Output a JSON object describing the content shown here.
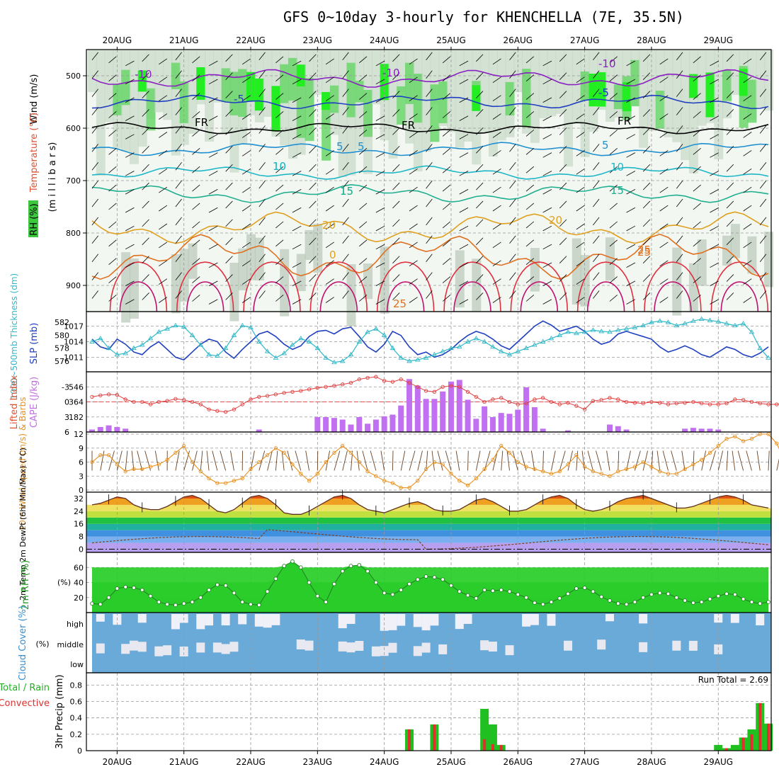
{
  "title": "GFS 0~10day 3-hourly for KHENCHELLA (7E, 35.5N)",
  "chart_data": {
    "type": "meteogram",
    "dates": [
      "20AUG",
      "21AUG",
      "22AUG",
      "23AUG",
      "24AUG",
      "25AUG",
      "26AUG",
      "27AUG",
      "28AUG",
      "29AUG"
    ],
    "panels": {
      "upper_air": {
        "ylabel_wind": "Wind (m/s)",
        "ylabel_temp": "Temperature (°C)",
        "ylabel_pres": "(m i l l i b a r s)",
        "ylabel_rh": "RH (%)",
        "yticks": [
          "500",
          "600",
          "700",
          "800",
          "900"
        ],
        "ylim": [
          450,
          950
        ],
        "isotherm_labels": [
          "-10",
          "-5",
          "FR",
          "5",
          "10",
          "15",
          "20",
          "25",
          "0",
          "25",
          "-10",
          "-5",
          "FR",
          "5",
          "10",
          "15",
          "20",
          "25",
          "-10",
          "FR",
          "-5",
          "5",
          "10",
          "15"
        ]
      },
      "sfc_pressure": {
        "ylabel_thick": "1000~500mb Thickness (dm)",
        "ylabel_slp": "SLP (mb)",
        "thick_ticks": [
          "582",
          "580",
          "578",
          "576"
        ],
        "slp_ticks": [
          "1017",
          "1014",
          "1011"
        ],
        "thick_ylim": [
          575,
          583
        ],
        "slp_ylim": [
          1009,
          1019
        ],
        "slp": [
          1014.5,
          1013,
          1012.5,
          1014.5,
          1013.5,
          1012,
          1011.5,
          1013,
          1014,
          1012.5,
          1011,
          1010.5,
          1012,
          1013.5,
          1014.5,
          1014,
          1012,
          1010.8,
          1012.5,
          1014,
          1015.5,
          1016,
          1015,
          1013.5,
          1012.5,
          1013.2,
          1015,
          1016,
          1016.2,
          1015.5,
          1016.5,
          1016.8,
          1015,
          1013,
          1012,
          1013.5,
          1016,
          1015.2,
          1013,
          1011.5,
          1012,
          1011,
          1011.5,
          1012.5,
          1014,
          1015.2,
          1016,
          1015.5,
          1014.5,
          1013.2,
          1012.5,
          1014,
          1015.5,
          1017,
          1018,
          1017.2,
          1016,
          1016.5,
          1017,
          1016,
          1014.5,
          1013.5,
          1014,
          1015.5,
          1016,
          1015.5,
          1015,
          1014.5,
          1013,
          1012,
          1012.5,
          1013.2,
          1012.5,
          1011.5,
          1011,
          1012,
          1013,
          1012.5,
          1011.5,
          1011,
          1011.8,
          1013
        ],
        "thickness": [
          579,
          579.5,
          578,
          577,
          577.2,
          578,
          578.5,
          579.5,
          580.5,
          581,
          581.5,
          581.3,
          580,
          578.5,
          577,
          576.8,
          578,
          580,
          581.5,
          581.2,
          579,
          577.5,
          576.5,
          577.2,
          578.5,
          579.5,
          579,
          578,
          576.5,
          575.8,
          576,
          577,
          579,
          580.5,
          581,
          580,
          578,
          576.5,
          576,
          576.2,
          576.5,
          577,
          577.5,
          578,
          578.2,
          579,
          579.5,
          579,
          578.2,
          577.5,
          577,
          577.5,
          578,
          578.5,
          579,
          579.5,
          580,
          580.5,
          580.3,
          580.5,
          580.8,
          580.6,
          580.5,
          580.8,
          581,
          581.2,
          581.5,
          582,
          582.2,
          582,
          581.5,
          581.8,
          582.2,
          582.5,
          582.3,
          582.1,
          581.8,
          581.5,
          581.8,
          580.5,
          578,
          576.5
        ]
      },
      "cape_li": {
        "ylabel_li": "Lifted Index",
        "ylabel_cape": "CAPE (J/kg)",
        "li_ticks": [
          "-3",
          "0",
          "3",
          "6"
        ],
        "cape_ticks": [
          "546",
          "364",
          "182"
        ],
        "li_ylim": [
          -6,
          6
        ],
        "cape_ylim": [
          0,
          728
        ],
        "cape": [
          30,
          60,
          80,
          60,
          40,
          0,
          0,
          0,
          0,
          0,
          0,
          0,
          0,
          0,
          0,
          0,
          0,
          0,
          0,
          0,
          30,
          0,
          0,
          0,
          0,
          0,
          0,
          180,
          180,
          170,
          150,
          90,
          180,
          100,
          150,
          190,
          210,
          320,
          640,
          560,
          400,
          400,
          490,
          610,
          630,
          390,
          160,
          310,
          180,
          230,
          220,
          270,
          540,
          300,
          40,
          0,
          0,
          20,
          0,
          0,
          0,
          0,
          90,
          70,
          30,
          0,
          0,
          0,
          0,
          0,
          0,
          40,
          50,
          40,
          40,
          30,
          0,
          0,
          0,
          0,
          0,
          0,
          0,
          0,
          0,
          0
        ],
        "li": [
          -1,
          -1.3,
          -1.5,
          -1.4,
          -0.5,
          0,
          0,
          0.5,
          0,
          -0.2,
          -0.6,
          -0.4,
          0,
          0.5,
          1.5,
          1.8,
          2,
          1.5,
          0.5,
          -0.5,
          -1,
          -1.2,
          -1.5,
          -1.8,
          -2,
          -2.2,
          -2.5,
          -2.8,
          -3,
          -3.2,
          -3.5,
          -3.8,
          -4.5,
          -4.8,
          -5,
          -4.2,
          -4,
          -4.5,
          -3.8,
          -3,
          -2.2,
          -2,
          -3,
          -3.2,
          -3,
          -2,
          -1,
          0,
          -0.5,
          -0.8,
          0,
          0.5,
          0.3,
          -0.5,
          -0.8,
          0,
          0.5,
          0.2,
          0.8,
          1.5,
          -0.2,
          -0.4,
          -0.8,
          -0.5,
          0,
          0.2,
          0.3,
          0,
          0.2,
          0.5,
          0.3,
          0.2,
          0,
          0.3,
          0.5,
          0.5,
          0.3,
          -0.5,
          -0.4,
          0,
          0.3,
          0.5,
          0.5,
          0.4,
          0.3,
          0.5
        ]
      },
      "wind10m": {
        "ylabel": "10m Wind Speed (m/s) & Barbs",
        "yticks": [
          "12",
          "9",
          "6",
          "3",
          "0"
        ],
        "ylim": [
          0,
          12
        ],
        "speed": [
          6,
          7.5,
          7.5,
          5.5,
          4,
          4.5,
          4.5,
          5,
          5.5,
          6.5,
          8,
          9.5,
          6,
          4,
          2.5,
          1.5,
          1.5,
          2,
          2.5,
          4.5,
          6,
          7.5,
          9,
          8,
          5.5,
          3.5,
          2,
          3.5,
          6,
          8,
          9.5,
          8,
          6,
          4,
          3,
          2,
          1.5,
          0.5,
          0.5,
          2,
          4.5,
          6,
          5.5,
          3.5,
          2,
          1,
          2.5,
          4.5,
          6.5,
          9.5,
          8,
          6,
          5,
          4.5,
          4,
          3.5,
          4,
          5.5,
          7.5,
          5,
          4,
          3.5,
          3,
          4,
          4.5,
          5,
          6,
          5,
          4,
          3.5,
          3.5,
          4.5,
          5.5,
          6.5,
          8,
          9.5,
          11,
          11.5,
          10.5,
          11,
          12,
          12,
          10,
          6,
          2.5,
          2
        ]
      },
      "temp2m": {
        "ylabel": "2m Temp 2m DewPt (6hr Min/Max) (°C)",
        "yticks": [
          "32",
          "24",
          "16",
          "8",
          "0"
        ],
        "ylim": [
          -2,
          36
        ],
        "temp": [
          28,
          29,
          31,
          33,
          32,
          28,
          26,
          25,
          25,
          27,
          30,
          33,
          34,
          32,
          28,
          24,
          23,
          25,
          29,
          33,
          34,
          32,
          28,
          23,
          22,
          22,
          24,
          27,
          30,
          33,
          34,
          32,
          28,
          25,
          24,
          23,
          25,
          27,
          29,
          30,
          28,
          25,
          24,
          24,
          25,
          28,
          31,
          32,
          30,
          27,
          24,
          24,
          25,
          28,
          31,
          33,
          34,
          32,
          28,
          25,
          24,
          25,
          27,
          30,
          32,
          33,
          34,
          32,
          30,
          28,
          26,
          26,
          27,
          29,
          31,
          33,
          34,
          33,
          31,
          28,
          27,
          26
        ]
      },
      "rh2m": {
        "ylabel": "2m RH (%)",
        "yticks": [
          "60",
          "40",
          "20"
        ],
        "ylim": [
          0,
          80
        ],
        "rh": [
          12,
          11,
          20,
          32,
          34,
          33,
          30,
          22,
          14,
          11,
          10,
          12,
          14,
          20,
          30,
          37,
          36,
          26,
          14,
          11,
          10,
          28,
          45,
          62,
          68,
          60,
          40,
          22,
          14,
          38,
          55,
          62,
          63,
          55,
          40,
          26,
          24,
          30,
          38,
          44,
          48,
          47,
          44,
          36,
          28,
          23,
          19,
          30,
          29,
          30,
          28,
          24,
          20,
          13,
          11,
          14,
          19,
          25,
          32,
          33,
          28,
          21,
          16,
          12,
          11,
          14,
          20,
          24,
          26,
          25,
          20,
          16,
          13,
          14,
          18,
          22,
          25,
          24,
          18,
          14,
          12,
          14
        ]
      },
      "cloud": {
        "ylabel": "Cloud Cover (%)",
        "ylevels": [
          "high",
          "middle",
          "low"
        ]
      },
      "precip": {
        "ylabel": "3hr Precip (mm)",
        "legend": [
          "Total / Rain",
          "Convective"
        ],
        "yticks": [
          "0.8",
          "0.6",
          "0.4",
          "0.2",
          "0"
        ],
        "ylim": [
          0,
          0.95
        ],
        "run_total_label": "Run Total = 2.69",
        "events": [
          {
            "i": 38,
            "total": 0.26,
            "conv": 0.26
          },
          {
            "i": 41,
            "total": 0.32,
            "conv": 0.32
          },
          {
            "i": 47,
            "total": 0.51,
            "conv": 0.14
          },
          {
            "i": 48,
            "total": 0.32,
            "conv": 0.08
          },
          {
            "i": 49,
            "total": 0.07,
            "conv": 0.07
          },
          {
            "i": 75,
            "total": 0.07,
            "conv": 0.0
          },
          {
            "i": 76,
            "total": 0.03,
            "conv": 0.03
          },
          {
            "i": 77,
            "total": 0.07,
            "conv": 0.0
          },
          {
            "i": 78,
            "total": 0.16,
            "conv": 0.16
          },
          {
            "i": 79,
            "total": 0.26,
            "conv": 0.2
          },
          {
            "i": 80,
            "total": 0.58,
            "conv": 0.58
          },
          {
            "i": 81,
            "total": 0.33,
            "conv": 0.33
          }
        ]
      }
    }
  }
}
